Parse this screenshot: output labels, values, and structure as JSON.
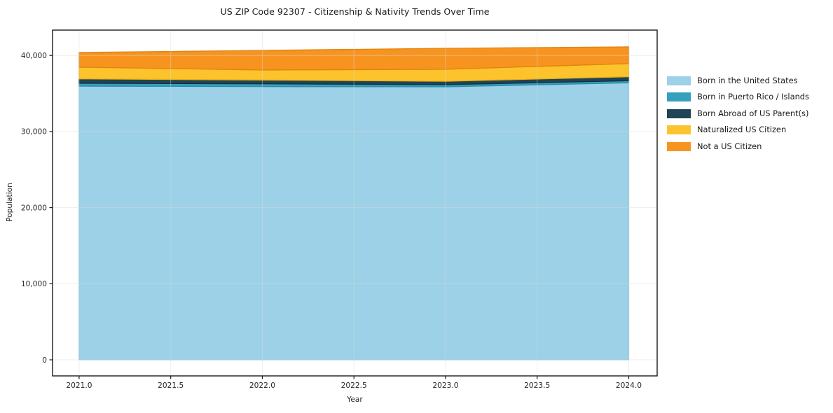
{
  "chart_data": {
    "type": "area",
    "stacked": true,
    "title": "US ZIP Code 92307 - Citizenship & Nativity Trends Over Time",
    "xlabel": "Year",
    "ylabel": "Population",
    "x": [
      2021,
      2022,
      2023,
      2024
    ],
    "series": [
      {
        "name": "Born in the United States",
        "color": "#9cd1e7",
        "edge": "#84c2dc",
        "values": [
          35970,
          35910,
          35880,
          36400
        ]
      },
      {
        "name": "Born in Puerto Rico / Islands",
        "color": "#35a0be",
        "edge": "#2a8aa6",
        "values": [
          370,
          360,
          280,
          280
        ]
      },
      {
        "name": "Born Abroad of US Parent(s)",
        "color": "#1f4455",
        "edge": "#15303d",
        "values": [
          580,
          500,
          440,
          520
        ]
      },
      {
        "name": "Naturalized US Citizen",
        "color": "#fcc32d",
        "edge": "#ecae14",
        "values": [
          1540,
          1320,
          1580,
          1730
        ]
      },
      {
        "name": "Not a US Citizen",
        "color": "#f79420",
        "edge": "#e2820f",
        "values": [
          1930,
          2570,
          2760,
          2200
        ]
      }
    ],
    "xticks": [
      2021.0,
      2021.5,
      2022.0,
      2022.5,
      2023.0,
      2023.5,
      2024.0
    ],
    "xtick_labels": [
      "2021.0",
      "2021.5",
      "2022.0",
      "2022.5",
      "2023.0",
      "2023.5",
      "2024.0"
    ],
    "yticks": [
      0,
      10000,
      20000,
      30000,
      40000
    ],
    "ytick_labels": [
      "0",
      "10,000",
      "20,000",
      "30,000",
      "40,000"
    ],
    "xlim": [
      2020.855,
      2024.155
    ],
    "ylim": [
      -2115,
      43330
    ],
    "grid": true,
    "legend_position": "right",
    "axis_color": "#1a1a1a",
    "tick_label_color": "#262626",
    "grid_color": "#d9d9d9"
  }
}
